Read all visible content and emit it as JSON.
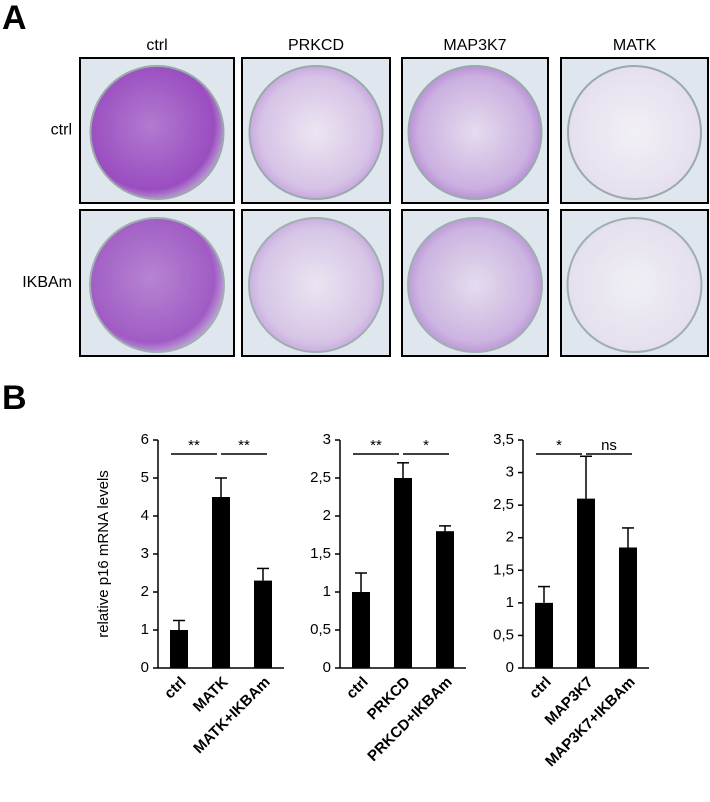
{
  "panel_a": {
    "label": "A",
    "columns": [
      "ctrl",
      "PRKCD",
      "MAP3K7",
      "MATK"
    ],
    "rows": [
      "ctrl",
      "IKBAm"
    ]
  },
  "panel_b_label": "B",
  "chart_data": [
    {
      "type": "bar",
      "ylabel": "relative p16 mRNA levels",
      "categories": [
        "ctrl",
        "MATK",
        "MATK+IKBAm"
      ],
      "series": [
        {
          "color": "#000000",
          "values": [
            1.0,
            4.5,
            2.3
          ],
          "errors": [
            0.25,
            0.5,
            0.32
          ]
        }
      ],
      "ylim": [
        0,
        6
      ],
      "yticks": [
        0,
        1,
        2,
        3,
        4,
        5,
        6
      ],
      "annotations": [
        "**",
        "**"
      ]
    },
    {
      "type": "bar",
      "categories": [
        "ctrl",
        "PRKCD",
        "PRKCD+IKBAm"
      ],
      "series": [
        {
          "color": "#000000",
          "values": [
            1.0,
            2.5,
            1.8
          ],
          "errors": [
            0.25,
            0.2,
            0.07
          ]
        }
      ],
      "ylim": [
        0,
        3
      ],
      "yticks": [
        0,
        {
          "value": 0.5,
          "label": "0,5"
        },
        1,
        {
          "value": 1.5,
          "label": "1,5"
        },
        2,
        {
          "value": 2.5,
          "label": "2,5"
        },
        3
      ],
      "annotations": [
        "**",
        "*"
      ]
    },
    {
      "type": "bar",
      "categories": [
        "ctrl",
        "MAP3K7",
        "MAP3K7+IKBAm"
      ],
      "series": [
        {
          "color": "#000000",
          "values": [
            1.0,
            2.6,
            1.85
          ],
          "errors": [
            0.25,
            0.65,
            0.3
          ]
        }
      ],
      "ylim": [
        0,
        3.5
      ],
      "yticks": [
        0,
        {
          "value": 0.5,
          "label": "0,5"
        },
        1,
        {
          "value": 1.5,
          "label": "1,5"
        },
        2,
        {
          "value": 2.5,
          "label": "2,5"
        },
        3,
        {
          "value": 3.5,
          "label": "3,5"
        }
      ],
      "annotations": [
        "*",
        "ns"
      ]
    }
  ]
}
